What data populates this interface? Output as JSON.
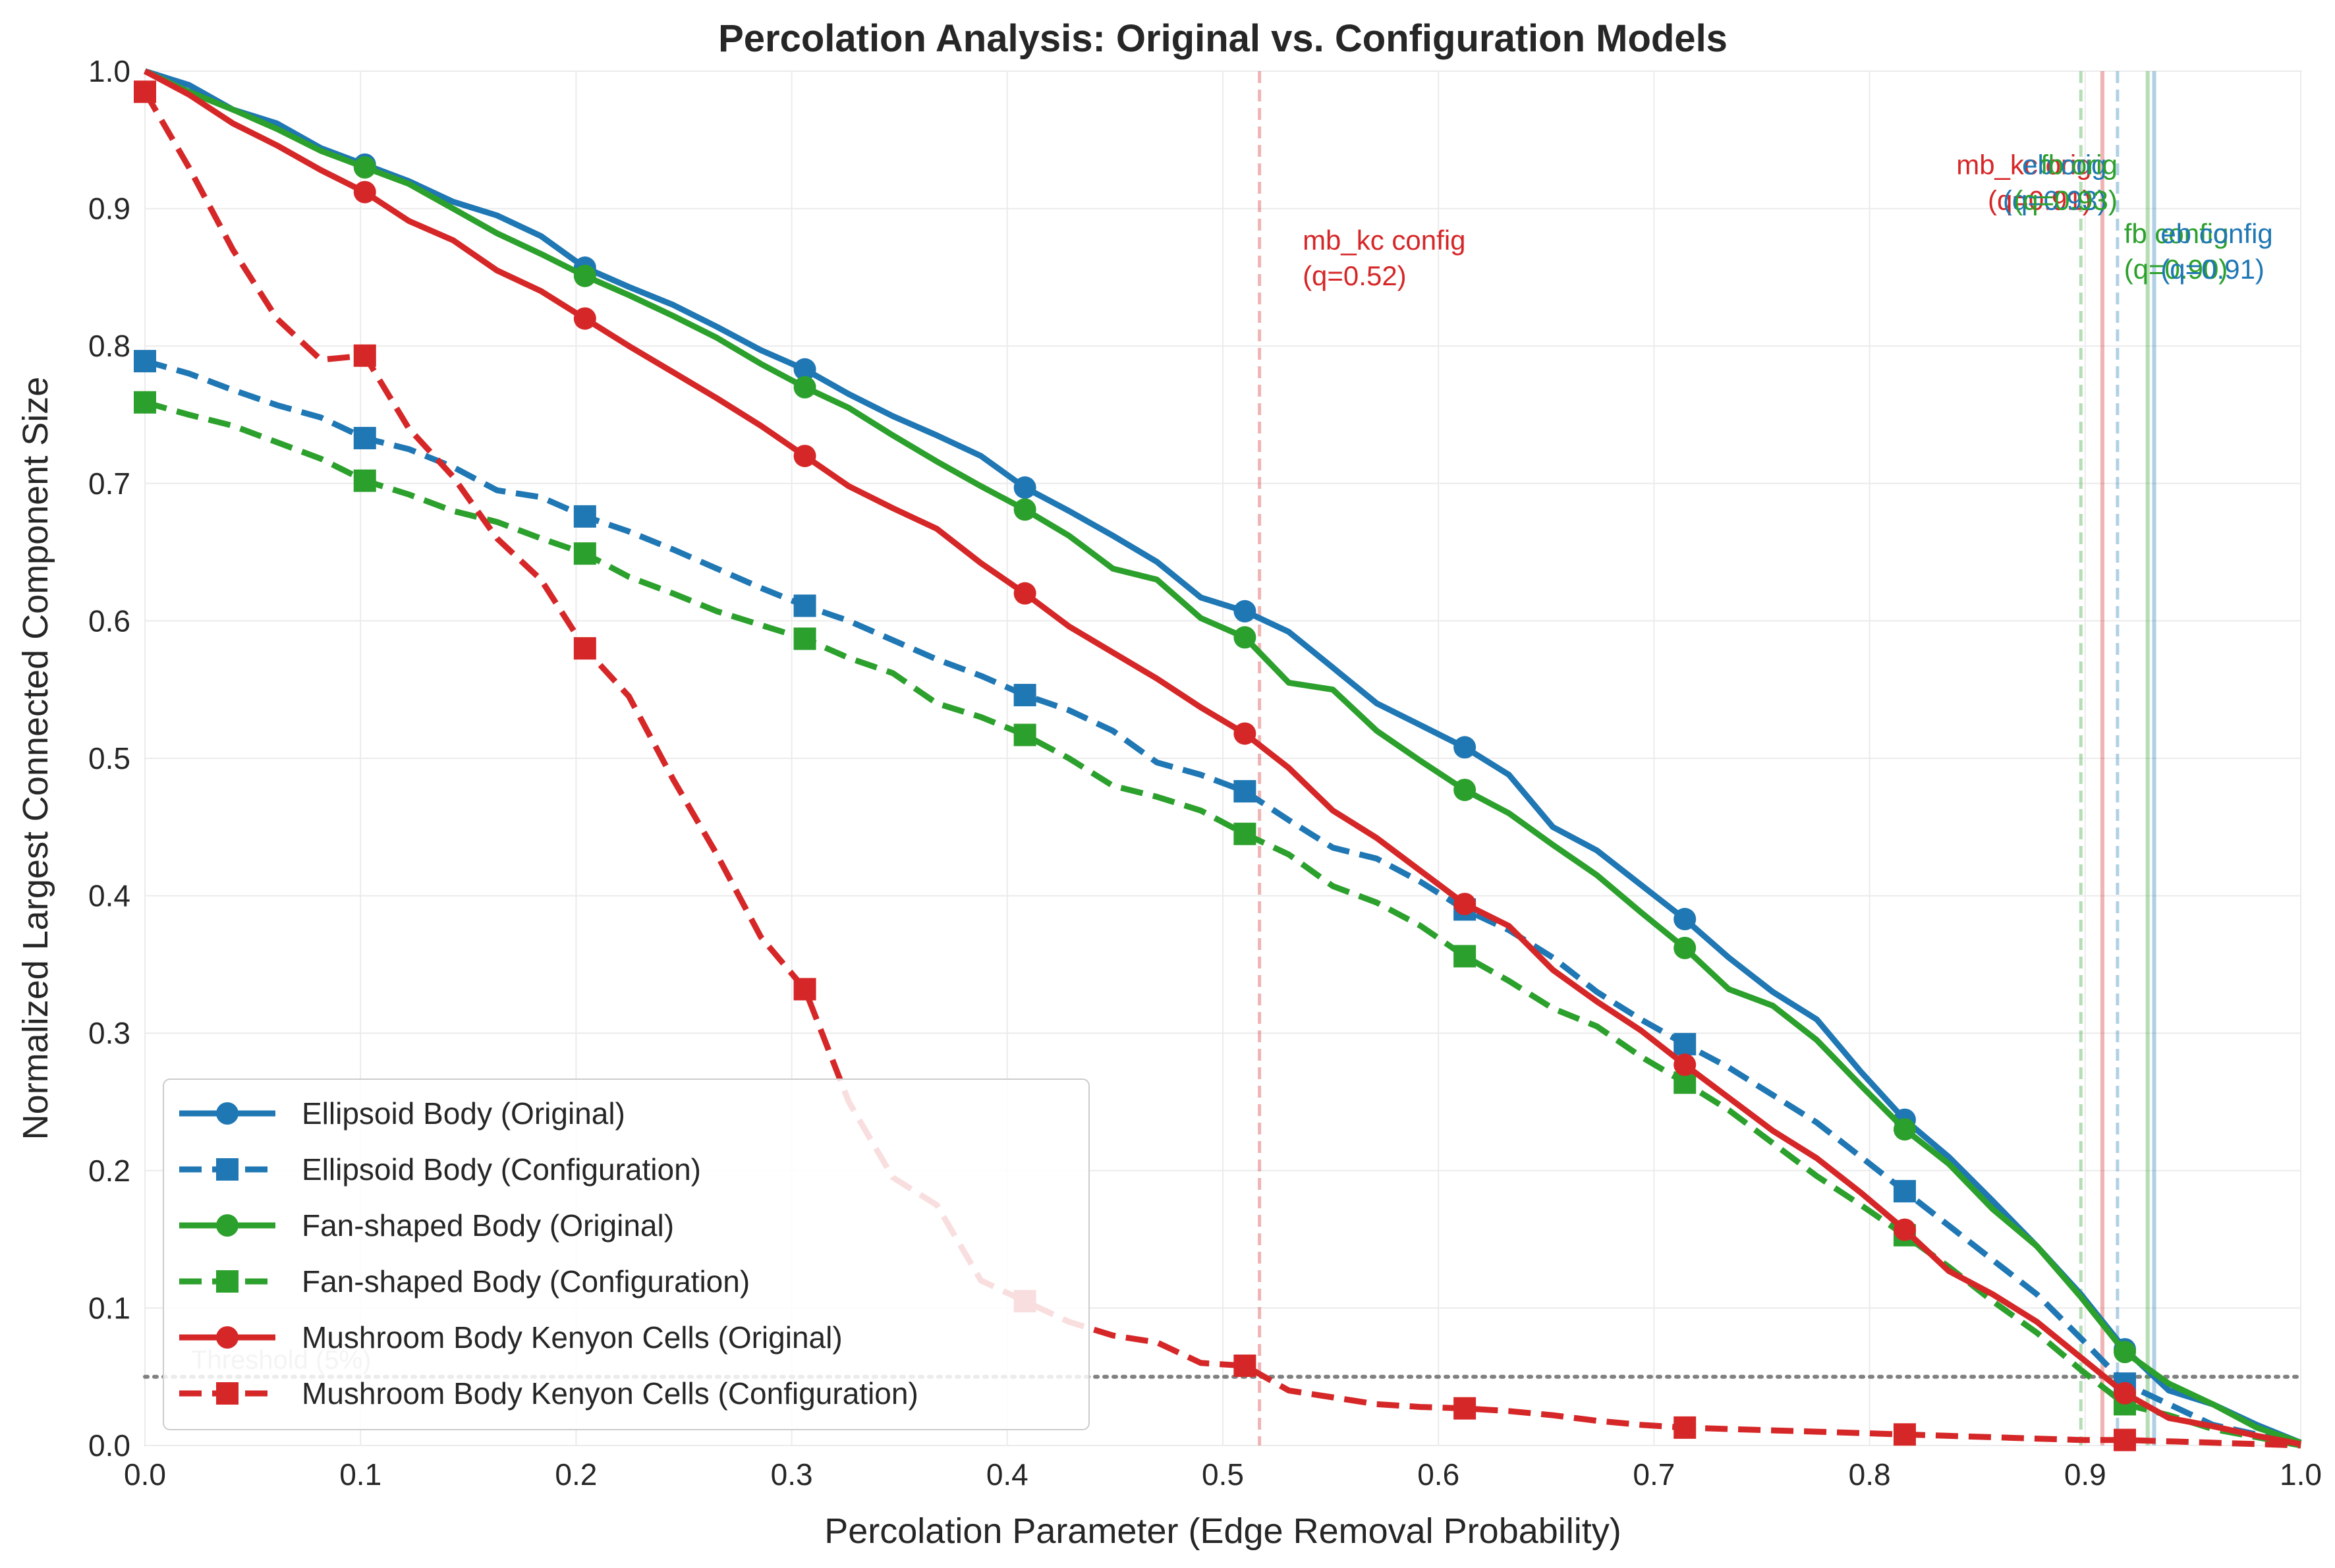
{
  "chart_data": {
    "type": "line",
    "title": "Percolation Analysis: Original vs. Configuration Models",
    "xlabel": "Percolation Parameter (Edge Removal Probability)",
    "ylabel": "Normalized Largest Connected Component Size",
    "xlim": [
      0.0,
      1.0
    ],
    "ylim": [
      0.0,
      1.0
    ],
    "xticks": [
      "0.0",
      "0.1",
      "0.2",
      "0.3",
      "0.4",
      "0.5",
      "0.6",
      "0.7",
      "0.8",
      "0.9",
      "1.0"
    ],
    "yticks": [
      "0.0",
      "0.1",
      "0.2",
      "0.3",
      "0.4",
      "0.5",
      "0.6",
      "0.7",
      "0.8",
      "0.9",
      "1.0"
    ],
    "grid": true,
    "legend_position": "lower-left",
    "colors": {
      "eb": "#1f77b4",
      "fb": "#2ca02c",
      "mb": "#d62728",
      "threshold": "#808080"
    },
    "x": [
      0.0,
      0.0204,
      0.0408,
      0.0612,
      0.0816,
      0.102,
      0.1224,
      0.1429,
      0.1633,
      0.1837,
      0.2041,
      0.2245,
      0.2449,
      0.2653,
      0.2857,
      0.3061,
      0.3265,
      0.3469,
      0.3673,
      0.3878,
      0.4082,
      0.4286,
      0.449,
      0.4694,
      0.4898,
      0.5102,
      0.5306,
      0.551,
      0.5714,
      0.5918,
      0.6122,
      0.6327,
      0.6531,
      0.6735,
      0.6939,
      0.7143,
      0.7347,
      0.7551,
      0.7755,
      0.7959,
      0.8163,
      0.8367,
      0.8571,
      0.8776,
      0.898,
      0.9184,
      0.9388,
      0.9592,
      0.9796,
      1.0
    ],
    "marker_every": 5,
    "series": [
      {
        "name": "Ellipsoid Body (Original)",
        "key": "eb",
        "dashed": false,
        "marker": "circle",
        "values": [
          1.0,
          0.99,
          0.972,
          0.962,
          0.944,
          0.932,
          0.92,
          0.905,
          0.895,
          0.88,
          0.857,
          0.843,
          0.83,
          0.814,
          0.797,
          0.783,
          0.765,
          0.749,
          0.735,
          0.72,
          0.697,
          0.68,
          0.662,
          0.643,
          0.617,
          0.607,
          0.592,
          0.566,
          0.54,
          0.524,
          0.508,
          0.488,
          0.45,
          0.433,
          0.408,
          0.383,
          0.355,
          0.33,
          0.31,
          0.272,
          0.237,
          0.21,
          0.178,
          0.145,
          0.11,
          0.07,
          0.04,
          0.03,
          0.015,
          0.002
        ]
      },
      {
        "name": "Ellipsoid Body (Configuration)",
        "key": "eb",
        "dashed": true,
        "marker": "square",
        "values": [
          0.789,
          0.78,
          0.768,
          0.757,
          0.748,
          0.733,
          0.725,
          0.712,
          0.695,
          0.69,
          0.676,
          0.665,
          0.652,
          0.638,
          0.624,
          0.611,
          0.6,
          0.586,
          0.572,
          0.56,
          0.546,
          0.535,
          0.52,
          0.497,
          0.488,
          0.476,
          0.455,
          0.435,
          0.427,
          0.41,
          0.39,
          0.375,
          0.355,
          0.33,
          0.31,
          0.292,
          0.275,
          0.255,
          0.235,
          0.21,
          0.185,
          0.16,
          0.135,
          0.11,
          0.078,
          0.045,
          0.03,
          0.015,
          0.008,
          0.002
        ]
      },
      {
        "name": "Fan-shaped Body (Original)",
        "key": "fb",
        "dashed": false,
        "marker": "circle",
        "values": [
          1.0,
          0.985,
          0.972,
          0.958,
          0.942,
          0.93,
          0.918,
          0.9,
          0.882,
          0.867,
          0.851,
          0.837,
          0.822,
          0.806,
          0.787,
          0.77,
          0.755,
          0.735,
          0.716,
          0.698,
          0.681,
          0.662,
          0.638,
          0.63,
          0.602,
          0.588,
          0.555,
          0.55,
          0.52,
          0.498,
          0.477,
          0.46,
          0.437,
          0.415,
          0.388,
          0.362,
          0.332,
          0.32,
          0.295,
          0.262,
          0.23,
          0.205,
          0.172,
          0.145,
          0.108,
          0.068,
          0.045,
          0.03,
          0.013,
          0.002
        ]
      },
      {
        "name": "Fan-shaped Body (Configuration)",
        "key": "fb",
        "dashed": true,
        "marker": "square",
        "values": [
          0.759,
          0.75,
          0.742,
          0.73,
          0.718,
          0.702,
          0.692,
          0.68,
          0.672,
          0.66,
          0.649,
          0.632,
          0.62,
          0.607,
          0.597,
          0.587,
          0.573,
          0.562,
          0.54,
          0.53,
          0.517,
          0.5,
          0.48,
          0.472,
          0.462,
          0.445,
          0.43,
          0.407,
          0.395,
          0.378,
          0.356,
          0.338,
          0.318,
          0.305,
          0.283,
          0.264,
          0.244,
          0.22,
          0.196,
          0.175,
          0.153,
          0.13,
          0.105,
          0.082,
          0.055,
          0.03,
          0.022,
          0.012,
          0.006,
          0.0
        ]
      },
      {
        "name": "Mushroom Body Kenyon Cells (Original)",
        "key": "mb",
        "dashed": false,
        "marker": "circle",
        "values": [
          1.0,
          0.983,
          0.962,
          0.946,
          0.928,
          0.912,
          0.891,
          0.877,
          0.855,
          0.84,
          0.82,
          0.8,
          0.781,
          0.762,
          0.742,
          0.72,
          0.698,
          0.682,
          0.667,
          0.642,
          0.62,
          0.596,
          0.577,
          0.558,
          0.537,
          0.518,
          0.493,
          0.462,
          0.442,
          0.418,
          0.394,
          0.378,
          0.346,
          0.323,
          0.302,
          0.277,
          0.253,
          0.229,
          0.209,
          0.184,
          0.157,
          0.127,
          0.11,
          0.09,
          0.064,
          0.038,
          0.02,
          0.014,
          0.007,
          0.001
        ]
      },
      {
        "name": "Mushroom Body Kenyon Cells (Configuration)",
        "key": "mb",
        "dashed": true,
        "marker": "square",
        "values": [
          0.985,
          0.93,
          0.87,
          0.82,
          0.79,
          0.793,
          0.74,
          0.705,
          0.66,
          0.63,
          0.58,
          0.545,
          0.485,
          0.43,
          0.37,
          0.332,
          0.25,
          0.195,
          0.175,
          0.12,
          0.105,
          0.09,
          0.08,
          0.075,
          0.06,
          0.058,
          0.04,
          0.035,
          0.03,
          0.028,
          0.027,
          0.025,
          0.022,
          0.018,
          0.015,
          0.013,
          0.012,
          0.011,
          0.01,
          0.009,
          0.008,
          0.007,
          0.006,
          0.005,
          0.004,
          0.004,
          0.003,
          0.002,
          0.001,
          0.0
        ]
      }
    ],
    "vlines": [
      {
        "x": 0.517,
        "key": "mb",
        "dashed": true
      },
      {
        "x": 0.898,
        "key": "fb",
        "dashed": true
      },
      {
        "x": 0.908,
        "key": "mb",
        "dashed": false
      },
      {
        "x": 0.915,
        "key": "eb",
        "dashed": true
      },
      {
        "x": 0.929,
        "key": "fb",
        "dashed": false
      },
      {
        "x": 0.932,
        "key": "eb",
        "dashed": false
      }
    ],
    "annotations": [
      {
        "line1": "mb_kc config",
        "line2": "(q=0.52)",
        "key": "mb",
        "x": 0.537,
        "y": 0.87,
        "align": "start"
      },
      {
        "line1": "mb_kc orig",
        "line2": "(q=0.91)",
        "key": "mb",
        "x": 0.903,
        "y": 0.925,
        "align": "end"
      },
      {
        "line1": "eb orig",
        "line2": "(q=0.93)",
        "key": "eb",
        "x": 0.91,
        "y": 0.925,
        "align": "end"
      },
      {
        "line1": "fb orig",
        "line2": "(q=0.93)",
        "key": "fb",
        "x": 0.915,
        "y": 0.925,
        "align": "end"
      },
      {
        "line1": "fb config",
        "line2": "(q=0.90)",
        "key": "fb",
        "x": 0.918,
        "y": 0.875,
        "align": "start"
      },
      {
        "line1": "eb config",
        "line2": "(q=0.91)",
        "key": "eb",
        "x": 0.935,
        "y": 0.875,
        "align": "start"
      }
    ],
    "threshold": {
      "y": 0.05,
      "label": "Threshold (5%)"
    }
  }
}
